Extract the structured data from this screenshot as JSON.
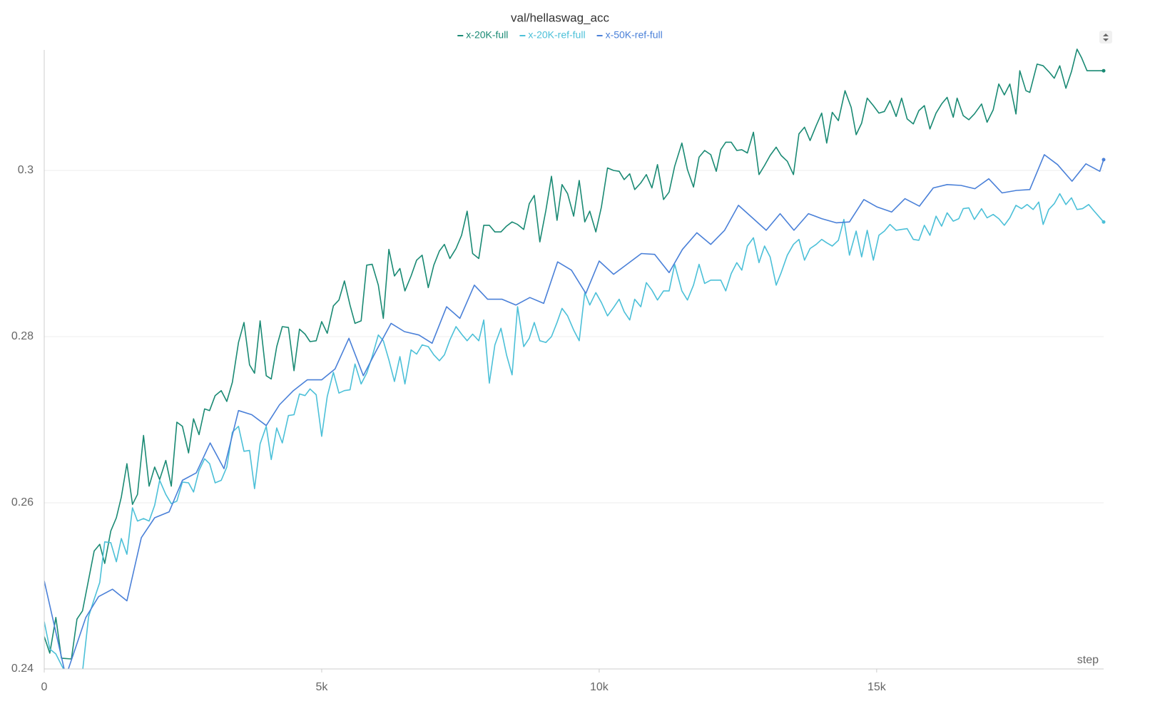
{
  "chart_data": {
    "type": "line",
    "title": "val/hellaswag_acc",
    "x_label": "step",
    "xlim": [
      0,
      19090
    ],
    "ylim": [
      0.24,
      0.315
    ],
    "xticks": [
      0,
      {
        "value": 5000,
        "label": "5k"
      },
      {
        "value": 10000,
        "label": "10k"
      },
      {
        "value": 15000,
        "label": "15k"
      }
    ],
    "yticks": [
      0.24,
      0.26,
      0.28,
      0.3
    ],
    "grid": true,
    "series": [
      {
        "name": "x-20K-full",
        "color": "#1a8a74",
        "x": [
          0,
          100,
          210,
          310,
          490,
          590,
          690,
          900,
          1000,
          1090,
          1200,
          1300,
          1390,
          1490,
          1590,
          1680,
          1790,
          1890,
          1990,
          2080,
          2190,
          2290,
          2390,
          2490,
          2600,
          2690,
          2790,
          2890,
          2980,
          3080,
          3190,
          3290,
          3390,
          3500,
          3600,
          3700,
          3790,
          3890,
          4000,
          4090,
          4190,
          4290,
          4400,
          4500,
          4600,
          4700,
          4790,
          4900,
          5000,
          5100,
          5210,
          5310,
          5410,
          5510,
          5600,
          5710,
          5810,
          5910,
          6020,
          6110,
          6210,
          6310,
          6410,
          6500,
          6610,
          6710,
          6810,
          6920,
          7020,
          7120,
          7210,
          7310,
          7420,
          7520,
          7620,
          7720,
          7830,
          7920,
          8020,
          8120,
          8230,
          8330,
          8430,
          8530,
          8640,
          8740,
          8830,
          8930,
          9040,
          9140,
          9240,
          9330,
          9430,
          9540,
          9640,
          9740,
          9830,
          9940,
          10040,
          10150,
          10260,
          10360,
          10450,
          10550,
          10640,
          10750,
          10850,
          10950,
          11050,
          11160,
          11260,
          11360,
          11490,
          11590,
          11700,
          11800,
          11900,
          12010,
          12110,
          12190,
          12280,
          12380,
          12480,
          12570,
          12670,
          12780,
          12880,
          12980,
          13080,
          13190,
          13280,
          13390,
          13500,
          13600,
          13700,
          13800,
          13910,
          14010,
          14100,
          14200,
          14310,
          14430,
          14540,
          14630,
          14730,
          14830,
          14940,
          15040,
          15140,
          15240,
          15350,
          15450,
          15550,
          15660,
          15760,
          15860,
          15960,
          16070,
          16170,
          16270,
          16380,
          16450,
          16560,
          16660,
          16760,
          16890,
          16990,
          17100,
          17200,
          17300,
          17400,
          17510,
          17580,
          17690,
          17760,
          17890,
          18000,
          18100,
          18200,
          18300,
          18410,
          18510,
          18610,
          18690,
          18790,
          19090
        ],
        "values": [
          0.2439,
          0.2419,
          0.2462,
          0.2413,
          0.2412,
          0.246,
          0.247,
          0.2542,
          0.255,
          0.2527,
          0.2566,
          0.2582,
          0.2607,
          0.2647,
          0.2598,
          0.261,
          0.2681,
          0.262,
          0.2643,
          0.2628,
          0.2651,
          0.262,
          0.2697,
          0.2692,
          0.266,
          0.2701,
          0.2682,
          0.2713,
          0.2711,
          0.2729,
          0.2735,
          0.2722,
          0.2745,
          0.2793,
          0.2817,
          0.2766,
          0.2756,
          0.2819,
          0.2753,
          0.2749,
          0.2788,
          0.2812,
          0.2811,
          0.2759,
          0.2809,
          0.2803,
          0.2794,
          0.2795,
          0.2818,
          0.2804,
          0.2837,
          0.2844,
          0.2867,
          0.2838,
          0.2816,
          0.2819,
          0.2886,
          0.2887,
          0.2862,
          0.2822,
          0.2905,
          0.2873,
          0.2882,
          0.2855,
          0.2873,
          0.2892,
          0.2898,
          0.2859,
          0.2886,
          0.2903,
          0.2911,
          0.2894,
          0.2906,
          0.2922,
          0.2951,
          0.29,
          0.2894,
          0.2934,
          0.2934,
          0.2926,
          0.2926,
          0.2933,
          0.2938,
          0.2935,
          0.2929,
          0.296,
          0.297,
          0.2914,
          0.2952,
          0.2993,
          0.294,
          0.2983,
          0.2972,
          0.2945,
          0.2988,
          0.2938,
          0.2951,
          0.2926,
          0.2956,
          0.3003,
          0.3,
          0.2999,
          0.2989,
          0.2996,
          0.2977,
          0.2985,
          0.2995,
          0.2979,
          0.3007,
          0.2965,
          0.2974,
          0.3005,
          0.3033,
          0.3001,
          0.298,
          0.3016,
          0.3024,
          0.3019,
          0.2999,
          0.3025,
          0.3034,
          0.3034,
          0.3024,
          0.3025,
          0.3021,
          0.3046,
          0.2995,
          0.3006,
          0.3018,
          0.3028,
          0.3018,
          0.3011,
          0.2995,
          0.3044,
          0.3052,
          0.3036,
          0.3054,
          0.3069,
          0.3033,
          0.307,
          0.306,
          0.3096,
          0.3076,
          0.3043,
          0.3057,
          0.3087,
          0.3078,
          0.3069,
          0.3071,
          0.3084,
          0.3065,
          0.3087,
          0.3062,
          0.3056,
          0.3072,
          0.3078,
          0.305,
          0.3069,
          0.308,
          0.3088,
          0.3064,
          0.3087,
          0.3066,
          0.3061,
          0.3068,
          0.308,
          0.3058,
          0.3073,
          0.3104,
          0.3091,
          0.3104,
          0.3068,
          0.312,
          0.3096,
          0.3094,
          0.3128,
          0.3126,
          0.3119,
          0.3111,
          0.3126,
          0.3099,
          0.3119,
          0.3146,
          0.3136,
          0.312,
          0.312
        ]
      },
      {
        "name": "x-20K-ref-full",
        "color": "#4cc0d8",
        "x": [
          0,
          100,
          210,
          490,
          590,
          690,
          800,
          900,
          1000,
          1090,
          1200,
          1300,
          1390,
          1490,
          1590,
          1680,
          1790,
          1890,
          1990,
          2080,
          2190,
          2290,
          2390,
          2490,
          2600,
          2690,
          2790,
          2890,
          2980,
          3080,
          3190,
          3290,
          3390,
          3500,
          3600,
          3700,
          3790,
          3890,
          4000,
          4090,
          4190,
          4290,
          4400,
          4500,
          4600,
          4700,
          4790,
          4900,
          5000,
          5100,
          5210,
          5310,
          5410,
          5510,
          5600,
          5710,
          5810,
          5910,
          6020,
          6110,
          6210,
          6310,
          6410,
          6500,
          6610,
          6710,
          6810,
          6920,
          7020,
          7120,
          7210,
          7310,
          7420,
          7520,
          7620,
          7720,
          7830,
          7920,
          8020,
          8120,
          8230,
          8330,
          8430,
          8530,
          8640,
          8740,
          8830,
          8930,
          9040,
          9140,
          9240,
          9330,
          9430,
          9540,
          9640,
          9740,
          9830,
          9940,
          10040,
          10150,
          10260,
          10360,
          10450,
          10550,
          10640,
          10750,
          10850,
          10950,
          11050,
          11160,
          11260,
          11360,
          11490,
          11590,
          11700,
          11800,
          11900,
          12010,
          12110,
          12190,
          12280,
          12380,
          12480,
          12570,
          12670,
          12780,
          12880,
          12980,
          13080,
          13190,
          13280,
          13390,
          13500,
          13600,
          13700,
          13800,
          13910,
          14010,
          14100,
          14200,
          14310,
          14410,
          14510,
          14630,
          14730,
          14830,
          14940,
          15040,
          15140,
          15240,
          15350,
          15450,
          15550,
          15660,
          15760,
          15860,
          15960,
          16070,
          16170,
          16270,
          16380,
          16480,
          16560,
          16660,
          16760,
          16890,
          16990,
          17100,
          17200,
          17300,
          17400,
          17510,
          17610,
          17710,
          17820,
          17920,
          18000,
          18100,
          18200,
          18300,
          18410,
          18510,
          18610,
          18710,
          18820,
          18920,
          19090
        ],
        "values": [
          0.2457,
          0.2424,
          0.2418,
          0.2381,
          0.2377,
          0.2397,
          0.2463,
          0.2484,
          0.2504,
          0.2553,
          0.2552,
          0.2529,
          0.2557,
          0.2538,
          0.2594,
          0.2578,
          0.2581,
          0.2578,
          0.2597,
          0.2627,
          0.261,
          0.2599,
          0.2602,
          0.2625,
          0.2624,
          0.2613,
          0.2639,
          0.2653,
          0.2647,
          0.2624,
          0.2627,
          0.2643,
          0.2685,
          0.2692,
          0.2662,
          0.2663,
          0.2617,
          0.2671,
          0.2692,
          0.2652,
          0.269,
          0.2672,
          0.2705,
          0.2706,
          0.2731,
          0.2729,
          0.2737,
          0.273,
          0.268,
          0.2728,
          0.2757,
          0.2732,
          0.2735,
          0.2736,
          0.2767,
          0.2743,
          0.2756,
          0.2776,
          0.2802,
          0.2795,
          0.2772,
          0.2746,
          0.2776,
          0.2743,
          0.2784,
          0.2779,
          0.279,
          0.2788,
          0.2778,
          0.2771,
          0.2778,
          0.2796,
          0.2812,
          0.2803,
          0.2795,
          0.2803,
          0.2795,
          0.282,
          0.2744,
          0.279,
          0.281,
          0.2778,
          0.2754,
          0.2836,
          0.2788,
          0.2798,
          0.2817,
          0.2795,
          0.2793,
          0.28,
          0.2817,
          0.2834,
          0.2825,
          0.2808,
          0.2795,
          0.2853,
          0.2838,
          0.2853,
          0.2841,
          0.2825,
          0.2835,
          0.2845,
          0.283,
          0.282,
          0.2845,
          0.2836,
          0.2865,
          0.2856,
          0.2844,
          0.2855,
          0.2855,
          0.2887,
          0.2855,
          0.2844,
          0.2862,
          0.2887,
          0.2864,
          0.2868,
          0.2868,
          0.2868,
          0.2855,
          0.2876,
          0.2889,
          0.288,
          0.2909,
          0.2919,
          0.2889,
          0.2909,
          0.2896,
          0.2862,
          0.2877,
          0.2898,
          0.2911,
          0.2917,
          0.2892,
          0.2906,
          0.2911,
          0.2917,
          0.2913,
          0.2909,
          0.2916,
          0.2941,
          0.2898,
          0.2927,
          0.2896,
          0.2928,
          0.2892,
          0.2922,
          0.2927,
          0.2935,
          0.2928,
          0.2929,
          0.293,
          0.2917,
          0.2916,
          0.2934,
          0.2922,
          0.2945,
          0.2933,
          0.2949,
          0.2939,
          0.2942,
          0.2954,
          0.2955,
          0.2941,
          0.2954,
          0.2943,
          0.2947,
          0.2942,
          0.2934,
          0.2943,
          0.2958,
          0.2954,
          0.2959,
          0.2953,
          0.2962,
          0.2935,
          0.2953,
          0.296,
          0.2972,
          0.2959,
          0.2967,
          0.2953,
          0.2954,
          0.2959,
          0.2951,
          0.2938
        ]
      },
      {
        "name": "x-50K-ref-full",
        "color": "#4a80d8",
        "x": [
          0,
          390,
          750,
          980,
          1230,
          1490,
          1750,
          1990,
          2250,
          2490,
          2740,
          2990,
          3240,
          3500,
          3740,
          4000,
          4240,
          4490,
          4740,
          5000,
          5240,
          5490,
          5750,
          5990,
          6250,
          6490,
          6750,
          6990,
          7250,
          7490,
          7750,
          7990,
          8250,
          8500,
          8750,
          9000,
          9250,
          9500,
          9760,
          10000,
          10260,
          10500,
          10760,
          11000,
          11260,
          11500,
          11760,
          12010,
          12260,
          12510,
          12760,
          13010,
          13260,
          13510,
          13770,
          14010,
          14270,
          14510,
          14770,
          15010,
          15270,
          15510,
          15770,
          16020,
          16270,
          16520,
          16770,
          17020,
          17260,
          17520,
          17760,
          18020,
          18260,
          18520,
          18770,
          19020,
          19090
        ],
        "values": [
          0.2506,
          0.2391,
          0.2462,
          0.2487,
          0.2496,
          0.2482,
          0.2558,
          0.2582,
          0.2589,
          0.2627,
          0.2636,
          0.2672,
          0.2641,
          0.2711,
          0.2706,
          0.2693,
          0.2718,
          0.2735,
          0.2748,
          0.2748,
          0.2761,
          0.2798,
          0.2753,
          0.2784,
          0.2816,
          0.2806,
          0.2802,
          0.2792,
          0.2836,
          0.2822,
          0.2862,
          0.2845,
          0.2845,
          0.2838,
          0.2847,
          0.284,
          0.289,
          0.288,
          0.2852,
          0.2891,
          0.2875,
          0.2887,
          0.29,
          0.2899,
          0.2877,
          0.2905,
          0.2925,
          0.2911,
          0.2928,
          0.2958,
          0.2943,
          0.2928,
          0.2948,
          0.2928,
          0.2948,
          0.2942,
          0.2937,
          0.2938,
          0.2965,
          0.2956,
          0.295,
          0.2966,
          0.2957,
          0.2979,
          0.2983,
          0.2982,
          0.2978,
          0.299,
          0.2973,
          0.2976,
          0.2977,
          0.3019,
          0.3007,
          0.2987,
          0.3008,
          0.2999,
          0.3013
        ]
      }
    ]
  }
}
